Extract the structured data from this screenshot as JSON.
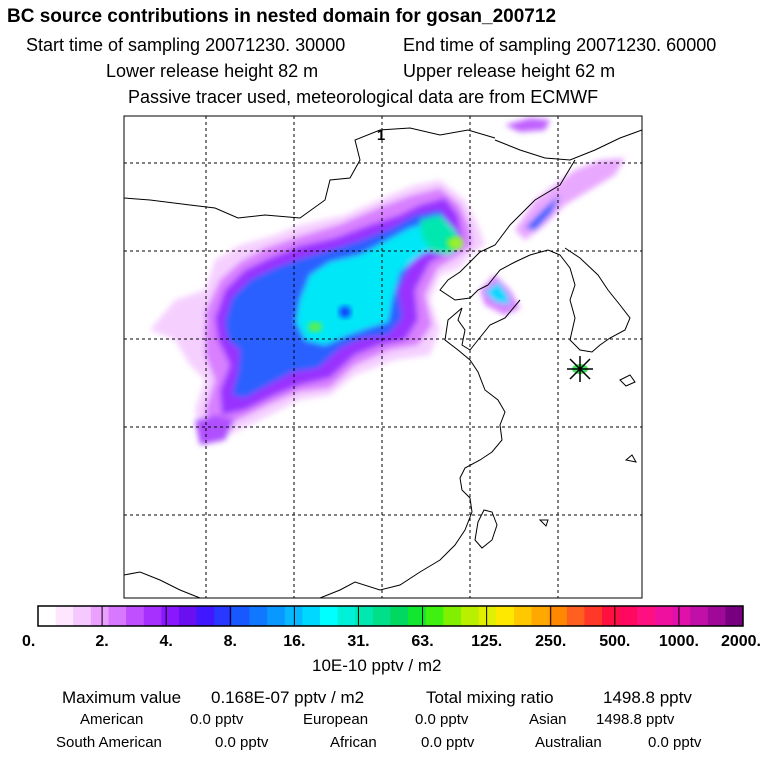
{
  "title": "BC  source contributions in nested domain for gosan_200712",
  "header": {
    "start_time": "Start time of sampling 20071230. 30000",
    "end_time": "End time of sampling 20071230. 60000",
    "lower_height": "Lower release height   82 m",
    "upper_height": "Upper release height   62 m",
    "note": "Passive tracer used, meteorological data are from ECMWF"
  },
  "map": {
    "panel_label": "1",
    "receptor_marker": "star-icon"
  },
  "colorbar": {
    "unit": "10E-10 pptv / m2",
    "ticks": [
      "0.",
      "2.",
      "4.",
      "8.",
      "16.",
      "31.",
      "63.",
      "125.",
      "250.",
      "500.",
      "1000.",
      "2000."
    ],
    "colors": [
      "#ffffff",
      "#ffe6ff",
      "#f5c8ff",
      "#eba0ff",
      "#d878ff",
      "#c050ff",
      "#a830ff",
      "#8a18ff",
      "#6a10f0",
      "#4018ff",
      "#2838ff",
      "#1858ff",
      "#1078ff",
      "#0898ff",
      "#08b8ff",
      "#00d8ff",
      "#00ffff",
      "#00f0d8",
      "#00e8b0",
      "#00e088",
      "#00d860",
      "#10e830",
      "#40f010",
      "#80f000",
      "#b8f000",
      "#e0f000",
      "#ffe800",
      "#ffc800",
      "#ffa800",
      "#ff8800",
      "#ff6020",
      "#ff3828",
      "#ff1040",
      "#ff0860",
      "#ff1080",
      "#f010a0",
      "#e010a8",
      "#c010a8",
      "#a00898",
      "#780080"
    ]
  },
  "stats": {
    "max_label": "Maximum value",
    "max_value": "0.168E-07 pptv / m2",
    "total_label": "Total mixing ratio",
    "total_value": "1498.8 pptv"
  },
  "regions": [
    {
      "name": "American",
      "value": "0.0 pptv"
    },
    {
      "name": "European",
      "value": "0.0 pptv"
    },
    {
      "name": "Asian",
      "value": "1498.8 pptv"
    },
    {
      "name": "South American",
      "value": "0.0 pptv"
    },
    {
      "name": "African",
      "value": "0.0 pptv"
    },
    {
      "name": "Australian",
      "value": "0.0 pptv"
    }
  ]
}
